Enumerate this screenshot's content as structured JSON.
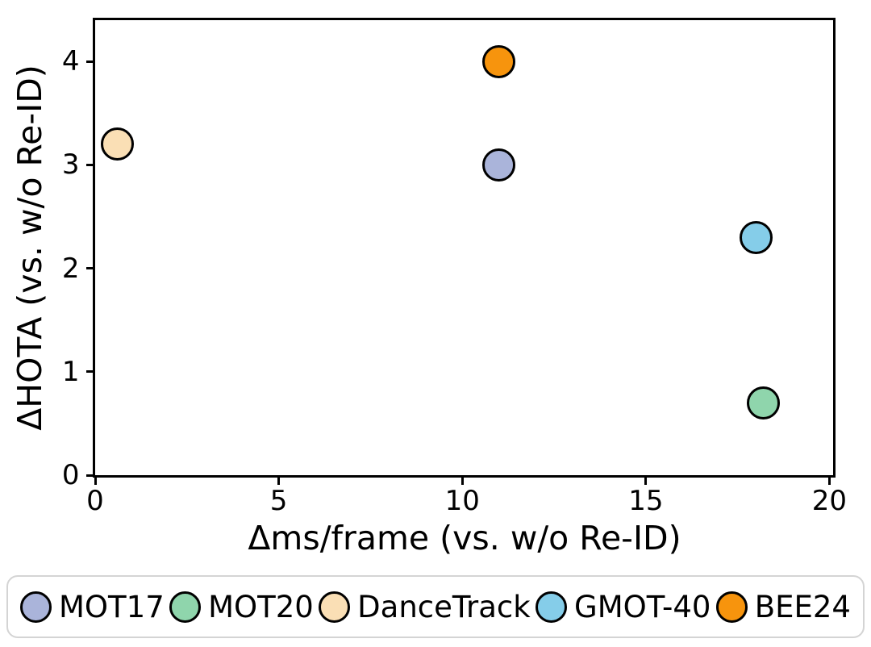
{
  "chart_data": {
    "type": "scatter",
    "xlabel": "Δms/frame (vs. w/o Re-ID)",
    "ylabel": "ΔHOTA (vs. w/o Re-ID)",
    "xlim": [
      0,
      20.1
    ],
    "ylim": [
      0,
      4.4
    ],
    "xticks": [
      0,
      5,
      10,
      15,
      20
    ],
    "yticks": [
      0,
      1,
      2,
      3,
      4
    ],
    "grid": true,
    "grid_style": "dashed",
    "legend_position": "bottom",
    "series": [
      {
        "name": "MOT17",
        "color": "#aab4da",
        "points": [
          {
            "x": 11,
            "y": 3.0
          }
        ]
      },
      {
        "name": "MOT20",
        "color": "#8fd5ac",
        "points": [
          {
            "x": 18.2,
            "y": 0.7
          }
        ]
      },
      {
        "name": "DanceTrack",
        "color": "#fadfb5",
        "points": [
          {
            "x": 0.6,
            "y": 3.2
          }
        ]
      },
      {
        "name": "GMOT-40",
        "color": "#85cde9",
        "points": [
          {
            "x": 18,
            "y": 2.3
          }
        ]
      },
      {
        "name": "BEE24",
        "color": "#f7940d",
        "points": [
          {
            "x": 11,
            "y": 4.0
          }
        ]
      }
    ],
    "theme": {
      "background": "#ffffff",
      "axis_color": "#000000",
      "grid_color": "#cccccc",
      "text_color": "#000000",
      "legend_border_color": "#d4d4d4"
    }
  }
}
